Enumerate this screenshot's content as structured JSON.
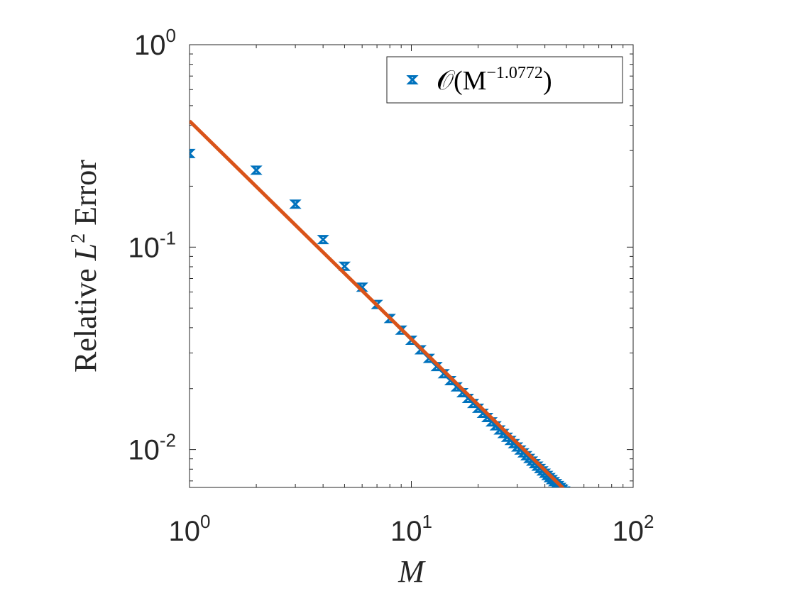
{
  "chart_data": {
    "type": "scatter",
    "x_scale": "log",
    "y_scale": "log",
    "xlim": [
      1,
      100
    ],
    "ylim": [
      0.0065,
      1
    ],
    "xlabel": "M",
    "ylabel_text": "Relative",
    "ylabel_math": "L",
    "ylabel_sup": "2",
    "ylabel_suffix": "Error",
    "x_ticks": [
      {
        "value": 1,
        "base": "10",
        "exp": "0"
      },
      {
        "value": 10,
        "base": "10",
        "exp": "1"
      },
      {
        "value": 100,
        "base": "10",
        "exp": "2"
      }
    ],
    "y_ticks": [
      {
        "value": 0.01,
        "base": "10",
        "exp": "-2"
      },
      {
        "value": 0.1,
        "base": "10",
        "exp": "-1"
      },
      {
        "value": 1,
        "base": "10",
        "exp": "0"
      }
    ],
    "grid": false,
    "legend_position": "top-right",
    "legend": {
      "label_prefix": "𝒪(M",
      "label_exp": "−1.0772",
      "label_suffix": ")"
    },
    "series": [
      {
        "marker": "bowtie",
        "color": "#0072BD",
        "x": [
          1,
          2,
          3,
          4,
          5,
          6,
          7,
          8,
          9,
          10,
          11,
          12,
          13,
          14,
          15,
          16,
          17,
          18,
          19,
          20,
          21,
          22,
          23,
          24,
          25,
          26,
          27,
          28,
          29,
          30,
          31,
          32,
          33,
          34,
          35,
          36,
          37,
          38,
          39,
          40,
          41,
          42,
          43,
          44,
          45,
          46,
          47,
          48,
          49,
          50
        ],
        "y": [
          0.29,
          0.24,
          0.163,
          0.109,
          0.0805,
          0.0634,
          0.0521,
          0.0444,
          0.0389,
          0.0347,
          0.0311,
          0.0282,
          0.0257,
          0.0237,
          0.0219,
          0.0204,
          0.0191,
          0.0179,
          0.0169,
          0.016,
          0.0151,
          0.0144,
          0.0137,
          0.0131,
          0.0125,
          0.012,
          0.0115,
          0.0111,
          0.0107,
          0.0103,
          0.00995,
          0.00963,
          0.00933,
          0.00904,
          0.00877,
          0.00852,
          0.00828,
          0.00806,
          0.00784,
          0.00764,
          0.00745,
          0.00727,
          0.0071,
          0.00694,
          0.00679,
          0.00664,
          0.0065,
          0.00637,
          0.00624,
          0.00612
        ]
      },
      {
        "type": "line",
        "color": "#D95319",
        "fit_coefficient": 0.42,
        "fit_exponent": -1.0772,
        "x_range": [
          1,
          50
        ]
      }
    ]
  },
  "colors": {
    "axis": "#262626",
    "legend_border": "#262626",
    "background": "#ffffff"
  }
}
